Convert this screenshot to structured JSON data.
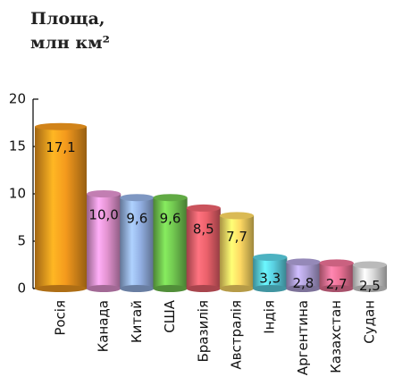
{
  "chart_data": {
    "type": "bar",
    "title": [
      "Площа,",
      "млн км²"
    ],
    "categories": [
      "Росія",
      "Канада",
      "Китай",
      "США",
      "Бразилія",
      "Австралія",
      "Індія",
      "Аргентина",
      "Казахстан",
      "Судан"
    ],
    "values": [
      17.1,
      10.0,
      9.6,
      9.6,
      8.5,
      7.7,
      3.3,
      2.8,
      2.7,
      2.5
    ],
    "value_labels": [
      "17,1",
      "10,0",
      "9,6",
      "9,6",
      "8,5",
      "7,7",
      "3,3",
      "2,8",
      "2,7",
      "2,5"
    ],
    "colors": [
      "#e8921c",
      "#d88cc6",
      "#8ca8d8",
      "#6cbd4c",
      "#e05c66",
      "#f2cf5e",
      "#56c6d6",
      "#a698cc",
      "#e06c8e",
      "#cfcfcf"
    ],
    "ylim": [
      0,
      20
    ],
    "yticks": [
      0,
      5,
      10,
      15,
      20
    ]
  }
}
